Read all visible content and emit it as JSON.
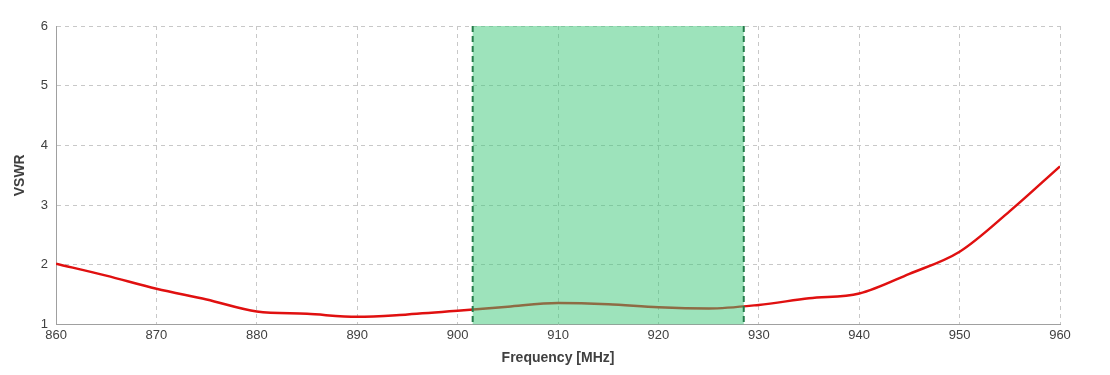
{
  "chart_data": {
    "type": "line",
    "x_label": "Frequency [MHz]",
    "y_label": "VSWR",
    "series": [
      {
        "name": "VSWR",
        "color": "#e01010",
        "line_style": "solid",
        "x": [
          860,
          865,
          870,
          875,
          880,
          885,
          890,
          895,
          900,
          905,
          910,
          915,
          920,
          925,
          930,
          935,
          940,
          945,
          950,
          955,
          960
        ],
        "values": [
          2.02,
          1.82,
          1.6,
          1.42,
          1.22,
          1.18,
          1.13,
          1.17,
          1.23,
          1.3,
          1.36,
          1.34,
          1.29,
          1.27,
          1.33,
          1.44,
          1.52,
          1.85,
          2.22,
          2.9,
          3.65
        ]
      }
    ],
    "highlight": {
      "xlim": [
        901.5,
        928.5
      ],
      "color": "#3cc878",
      "line_style": "dashed"
    },
    "xlim": [
      860,
      960
    ],
    "xticks": [
      860,
      870,
      880,
      890,
      900,
      910,
      920,
      930,
      940,
      950,
      960
    ],
    "ylim": [
      1,
      6
    ],
    "yticks": [
      1,
      2,
      3,
      4,
      5,
      6
    ],
    "grid": true,
    "legend": null
  }
}
